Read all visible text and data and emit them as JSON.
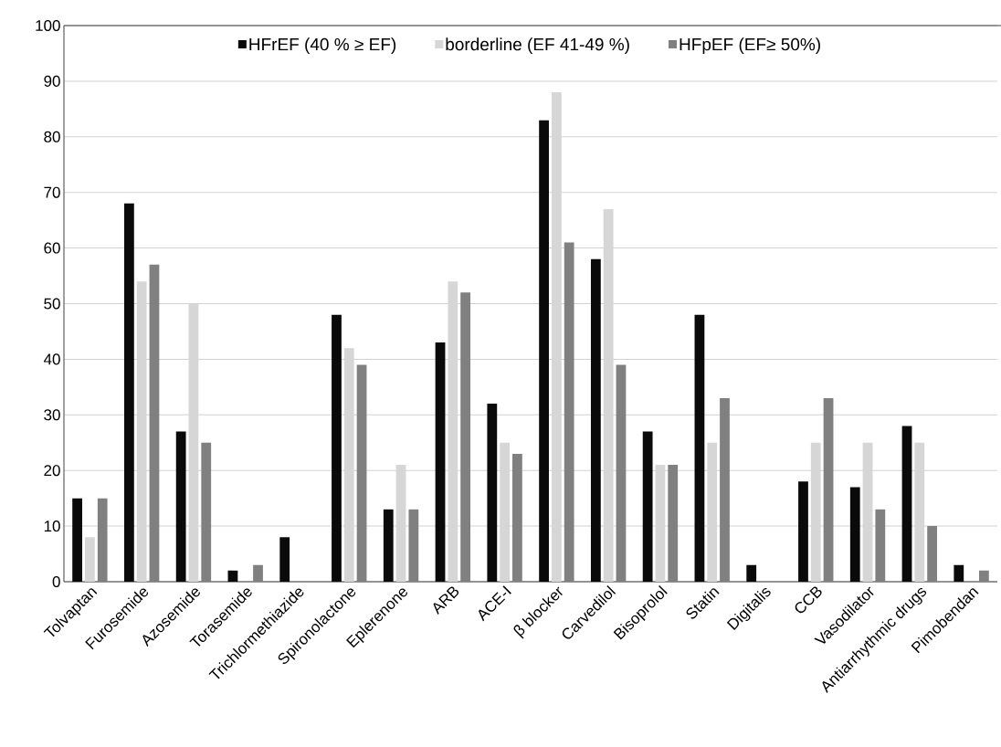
{
  "chart_data": {
    "type": "bar",
    "categories": [
      "Tolvaptan",
      "Furosemide",
      "Azosemide",
      "Torasemide",
      "Trichlormethiazide",
      "Spironolactone",
      "Eplerenone",
      "ARB",
      "ACE-I",
      "β blocker",
      "Carvedilol",
      "Bisoprolol",
      "Statin",
      "Digitalis",
      "CCB",
      "Vasodilator",
      "Antiarrhythmic drugs",
      "Pimobendan"
    ],
    "series": [
      {
        "name": "HFrEF  (40 % ≥ EF)",
        "color": "#0a0a0a",
        "values": [
          15,
          68,
          27,
          2,
          8,
          48,
          13,
          43,
          32,
          83,
          58,
          27,
          48,
          3,
          18,
          17,
          28,
          3
        ]
      },
      {
        "name": "borderline  (EF 41-49 %)",
        "color": "#d6d6d6",
        "values": [
          8,
          54,
          50,
          0,
          0,
          42,
          21,
          54,
          25,
          88,
          67,
          21,
          25,
          0,
          25,
          25,
          25,
          0
        ]
      },
      {
        "name": "HFpEF (EF≥ 50%)",
        "color": "#808080",
        "values": [
          15,
          57,
          25,
          3,
          0,
          39,
          13,
          52,
          23,
          61,
          39,
          21,
          33,
          0,
          33,
          13,
          10,
          2
        ]
      }
    ],
    "ylim": [
      0,
      100
    ],
    "yticks": [
      0,
      10,
      20,
      30,
      40,
      50,
      60,
      70,
      80,
      90,
      100
    ],
    "grid": "y",
    "legend": "top"
  }
}
